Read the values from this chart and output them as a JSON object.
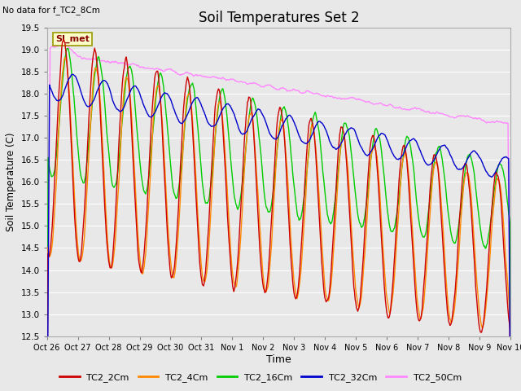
{
  "title": "Soil Temperatures Set 2",
  "note": "No data for f_TC2_8Cm",
  "ylabel": "Soil Temperature (C)",
  "xlabel": "Time",
  "ylim": [
    12.5,
    19.5
  ],
  "bg_color": "#e8e8e8",
  "series": {
    "TC2_2Cm": {
      "color": "#cc0000",
      "lw": 1.0
    },
    "TC2_4Cm": {
      "color": "#ff8800",
      "lw": 1.0
    },
    "TC2_16Cm": {
      "color": "#00cc00",
      "lw": 1.0
    },
    "TC2_32Cm": {
      "color": "#0000cc",
      "lw": 1.0
    },
    "TC2_50Cm": {
      "color": "#ff88ff",
      "lw": 1.0
    }
  },
  "xtick_labels": [
    "Oct 26",
    "Oct 27",
    "Oct 28",
    "Oct 29",
    "Oct 30",
    "Oct 31",
    "Nov 1",
    "Nov 2",
    "Nov 3",
    "Nov 4",
    "Nov 5",
    "Nov 6",
    "Nov 7",
    "Nov 8",
    "Nov 9",
    "Nov 10"
  ],
  "ytick_labels": [
    "12.5",
    "13.0",
    "13.5",
    "14.0",
    "14.5",
    "15.0",
    "15.5",
    "16.0",
    "16.5",
    "17.0",
    "17.5",
    "18.0",
    "18.5",
    "19.0",
    "19.5"
  ],
  "legend_box_facecolor": "#ffffcc",
  "legend_box_edgecolor": "#999900",
  "SI_met_label": "SI_met",
  "n_days": 15,
  "pts_per_day": 48
}
